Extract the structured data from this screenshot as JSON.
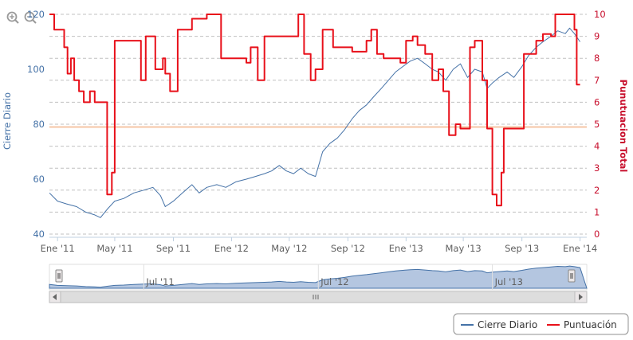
{
  "toolbar": {
    "zoom_in_icon": "zoom-in-icon",
    "zoom_out_icon": "zoom-out-icon"
  },
  "colors": {
    "close_line": "#4572A7",
    "score_line": "#E8101A",
    "plot_line": "#F5C5A5",
    "axis_left": "#4572A7",
    "axis_right": "#C8102E",
    "grid": "#C0C0C0",
    "navigator_fill": "#B4C6E0",
    "navigator_line": "#4572A7"
  },
  "chart_data": {
    "type": "line",
    "title": "",
    "xlabel": "",
    "ylabel_left": "Cierre Diario",
    "ylabel_right": "Punutuacion Total",
    "ylim_left": [
      40,
      120
    ],
    "ylim_right": [
      0,
      10
    ],
    "yticks_left": [
      "40",
      "60",
      "80",
      "100",
      "120"
    ],
    "yticks_right": [
      "0",
      "1",
      "2",
      "3",
      "4",
      "5",
      "6",
      "7",
      "8",
      "9",
      "10"
    ],
    "x_range": [
      "2010-12-15",
      "2014-01-15"
    ],
    "xticks": [
      {
        "date": "2011-01-01",
        "label": "Ene '11"
      },
      {
        "date": "2011-05-01",
        "label": "May '11"
      },
      {
        "date": "2011-09-01",
        "label": "Sep '11"
      },
      {
        "date": "2012-01-01",
        "label": "Ene '12"
      },
      {
        "date": "2012-05-01",
        "label": "May '12"
      },
      {
        "date": "2012-09-01",
        "label": "Sep '12"
      },
      {
        "date": "2013-01-01",
        "label": "Ene '13"
      },
      {
        "date": "2013-05-01",
        "label": "May '13"
      },
      {
        "date": "2013-09-01",
        "label": "Sep '13"
      },
      {
        "date": "2014-01-01",
        "label": "Ene '14"
      }
    ],
    "navigator_ticks": [
      {
        "date": "2011-07-01",
        "label": "Jul '11"
      },
      {
        "date": "2012-07-01",
        "label": "Jul '12"
      },
      {
        "date": "2013-07-01",
        "label": "Jul '13"
      }
    ],
    "legend_position": "bottom-right",
    "plot_line_left_value": 79,
    "grid": true,
    "series": [
      {
        "name": "Cierre Diario",
        "axis": "left",
        "points": [
          [
            "2010-12-15",
            55
          ],
          [
            "2011-01-01",
            52
          ],
          [
            "2011-01-20",
            51
          ],
          [
            "2011-02-10",
            50
          ],
          [
            "2011-03-01",
            48
          ],
          [
            "2011-03-20",
            47
          ],
          [
            "2011-04-01",
            46
          ],
          [
            "2011-04-15",
            49
          ],
          [
            "2011-05-01",
            52
          ],
          [
            "2011-05-20",
            53
          ],
          [
            "2011-06-10",
            55
          ],
          [
            "2011-07-01",
            56
          ],
          [
            "2011-07-20",
            57
          ],
          [
            "2011-08-05",
            54
          ],
          [
            "2011-08-15",
            50
          ],
          [
            "2011-09-01",
            52
          ],
          [
            "2011-09-20",
            55
          ],
          [
            "2011-10-10",
            58
          ],
          [
            "2011-10-25",
            55
          ],
          [
            "2011-11-10",
            57
          ],
          [
            "2011-12-01",
            58
          ],
          [
            "2011-12-20",
            57
          ],
          [
            "2012-01-10",
            59
          ],
          [
            "2012-02-01",
            60
          ],
          [
            "2012-02-20",
            61
          ],
          [
            "2012-03-10",
            62
          ],
          [
            "2012-03-25",
            63
          ],
          [
            "2012-04-10",
            65
          ],
          [
            "2012-04-25",
            63
          ],
          [
            "2012-05-10",
            62
          ],
          [
            "2012-05-25",
            64
          ],
          [
            "2012-06-10",
            62
          ],
          [
            "2012-06-25",
            61
          ],
          [
            "2012-07-10",
            70
          ],
          [
            "2012-07-25",
            73
          ],
          [
            "2012-08-10",
            75
          ],
          [
            "2012-08-25",
            78
          ],
          [
            "2012-09-10",
            82
          ],
          [
            "2012-09-25",
            85
          ],
          [
            "2012-10-10",
            87
          ],
          [
            "2012-10-25",
            90
          ],
          [
            "2012-11-10",
            93
          ],
          [
            "2012-11-25",
            96
          ],
          [
            "2012-12-10",
            99
          ],
          [
            "2012-12-25",
            101
          ],
          [
            "2013-01-10",
            103
          ],
          [
            "2013-01-25",
            104
          ],
          [
            "2013-02-10",
            102
          ],
          [
            "2013-02-25",
            100
          ],
          [
            "2013-03-10",
            99
          ],
          [
            "2013-03-25",
            96
          ],
          [
            "2013-04-10",
            100
          ],
          [
            "2013-04-25",
            102
          ],
          [
            "2013-05-10",
            97
          ],
          [
            "2013-05-25",
            100
          ],
          [
            "2013-06-10",
            99
          ],
          [
            "2013-06-20",
            93
          ],
          [
            "2013-07-01",
            95
          ],
          [
            "2013-07-15",
            97
          ],
          [
            "2013-08-01",
            99
          ],
          [
            "2013-08-15",
            97
          ],
          [
            "2013-09-01",
            101
          ],
          [
            "2013-09-15",
            105
          ],
          [
            "2013-10-01",
            108
          ],
          [
            "2013-10-15",
            110
          ],
          [
            "2013-11-01",
            112
          ],
          [
            "2013-11-15",
            114
          ],
          [
            "2013-12-01",
            113
          ],
          [
            "2013-12-10",
            115
          ],
          [
            "2013-12-20",
            113
          ],
          [
            "2014-01-01",
            110
          ]
        ]
      },
      {
        "name": "Puntuación",
        "axis": "right",
        "step": true,
        "points": [
          [
            "2010-12-15",
            10
          ],
          [
            "2010-12-25",
            9.3
          ],
          [
            "2011-01-15",
            8.5
          ],
          [
            "2011-01-22",
            7.3
          ],
          [
            "2011-01-29",
            8
          ],
          [
            "2011-02-05",
            7
          ],
          [
            "2011-02-15",
            6.5
          ],
          [
            "2011-02-25",
            6
          ],
          [
            "2011-03-10",
            6.5
          ],
          [
            "2011-03-20",
            6
          ],
          [
            "2011-04-01",
            6
          ],
          [
            "2011-04-15",
            1.8
          ],
          [
            "2011-04-25",
            2.8
          ],
          [
            "2011-05-01",
            8.8
          ],
          [
            "2011-06-20",
            8.8
          ],
          [
            "2011-06-25",
            7
          ],
          [
            "2011-07-05",
            9
          ],
          [
            "2011-07-25",
            7.5
          ],
          [
            "2011-08-10",
            8
          ],
          [
            "2011-08-15",
            7.3
          ],
          [
            "2011-08-25",
            6.5
          ],
          [
            "2011-09-10",
            9.3
          ],
          [
            "2011-10-10",
            9.8
          ],
          [
            "2011-11-10",
            10
          ],
          [
            "2011-12-10",
            8
          ],
          [
            "2012-01-10",
            8
          ],
          [
            "2012-02-01",
            7.8
          ],
          [
            "2012-02-10",
            8.5
          ],
          [
            "2012-02-25",
            7
          ],
          [
            "2012-03-10",
            9
          ],
          [
            "2012-04-20",
            9
          ],
          [
            "2012-05-01",
            9
          ],
          [
            "2012-05-20",
            10
          ],
          [
            "2012-06-01",
            8.2
          ],
          [
            "2012-06-15",
            7
          ],
          [
            "2012-06-25",
            7.5
          ],
          [
            "2012-07-10",
            9.3
          ],
          [
            "2012-08-01",
            8.5
          ],
          [
            "2012-08-15",
            8.5
          ],
          [
            "2012-09-10",
            8.3
          ],
          [
            "2012-10-10",
            8.8
          ],
          [
            "2012-10-20",
            9.3
          ],
          [
            "2012-11-01",
            8.2
          ],
          [
            "2012-11-15",
            8
          ],
          [
            "2012-12-20",
            7.8
          ],
          [
            "2013-01-01",
            8.8
          ],
          [
            "2013-01-15",
            9
          ],
          [
            "2013-01-25",
            8.6
          ],
          [
            "2013-02-10",
            8.2
          ],
          [
            "2013-02-25",
            7
          ],
          [
            "2013-03-10",
            7.5
          ],
          [
            "2013-03-20",
            6.5
          ],
          [
            "2013-04-01",
            4.5
          ],
          [
            "2013-04-15",
            5
          ],
          [
            "2013-04-25",
            4.8
          ],
          [
            "2013-05-01",
            4.8
          ],
          [
            "2013-05-15",
            8.5
          ],
          [
            "2013-05-25",
            8.8
          ],
          [
            "2013-06-10",
            7
          ],
          [
            "2013-06-20",
            4.8
          ],
          [
            "2013-07-01",
            1.8
          ],
          [
            "2013-07-10",
            1.3
          ],
          [
            "2013-07-20",
            2.8
          ],
          [
            "2013-07-25",
            4.8
          ],
          [
            "2013-09-01",
            4.8
          ],
          [
            "2013-09-05",
            8.2
          ],
          [
            "2013-10-01",
            8.8
          ],
          [
            "2013-10-15",
            9.1
          ],
          [
            "2013-11-01",
            9
          ],
          [
            "2013-11-10",
            10
          ],
          [
            "2013-12-10",
            10
          ],
          [
            "2013-12-20",
            9.3
          ],
          [
            "2013-12-25",
            6.8
          ],
          [
            "2014-01-01",
            6.8
          ]
        ]
      }
    ]
  }
}
